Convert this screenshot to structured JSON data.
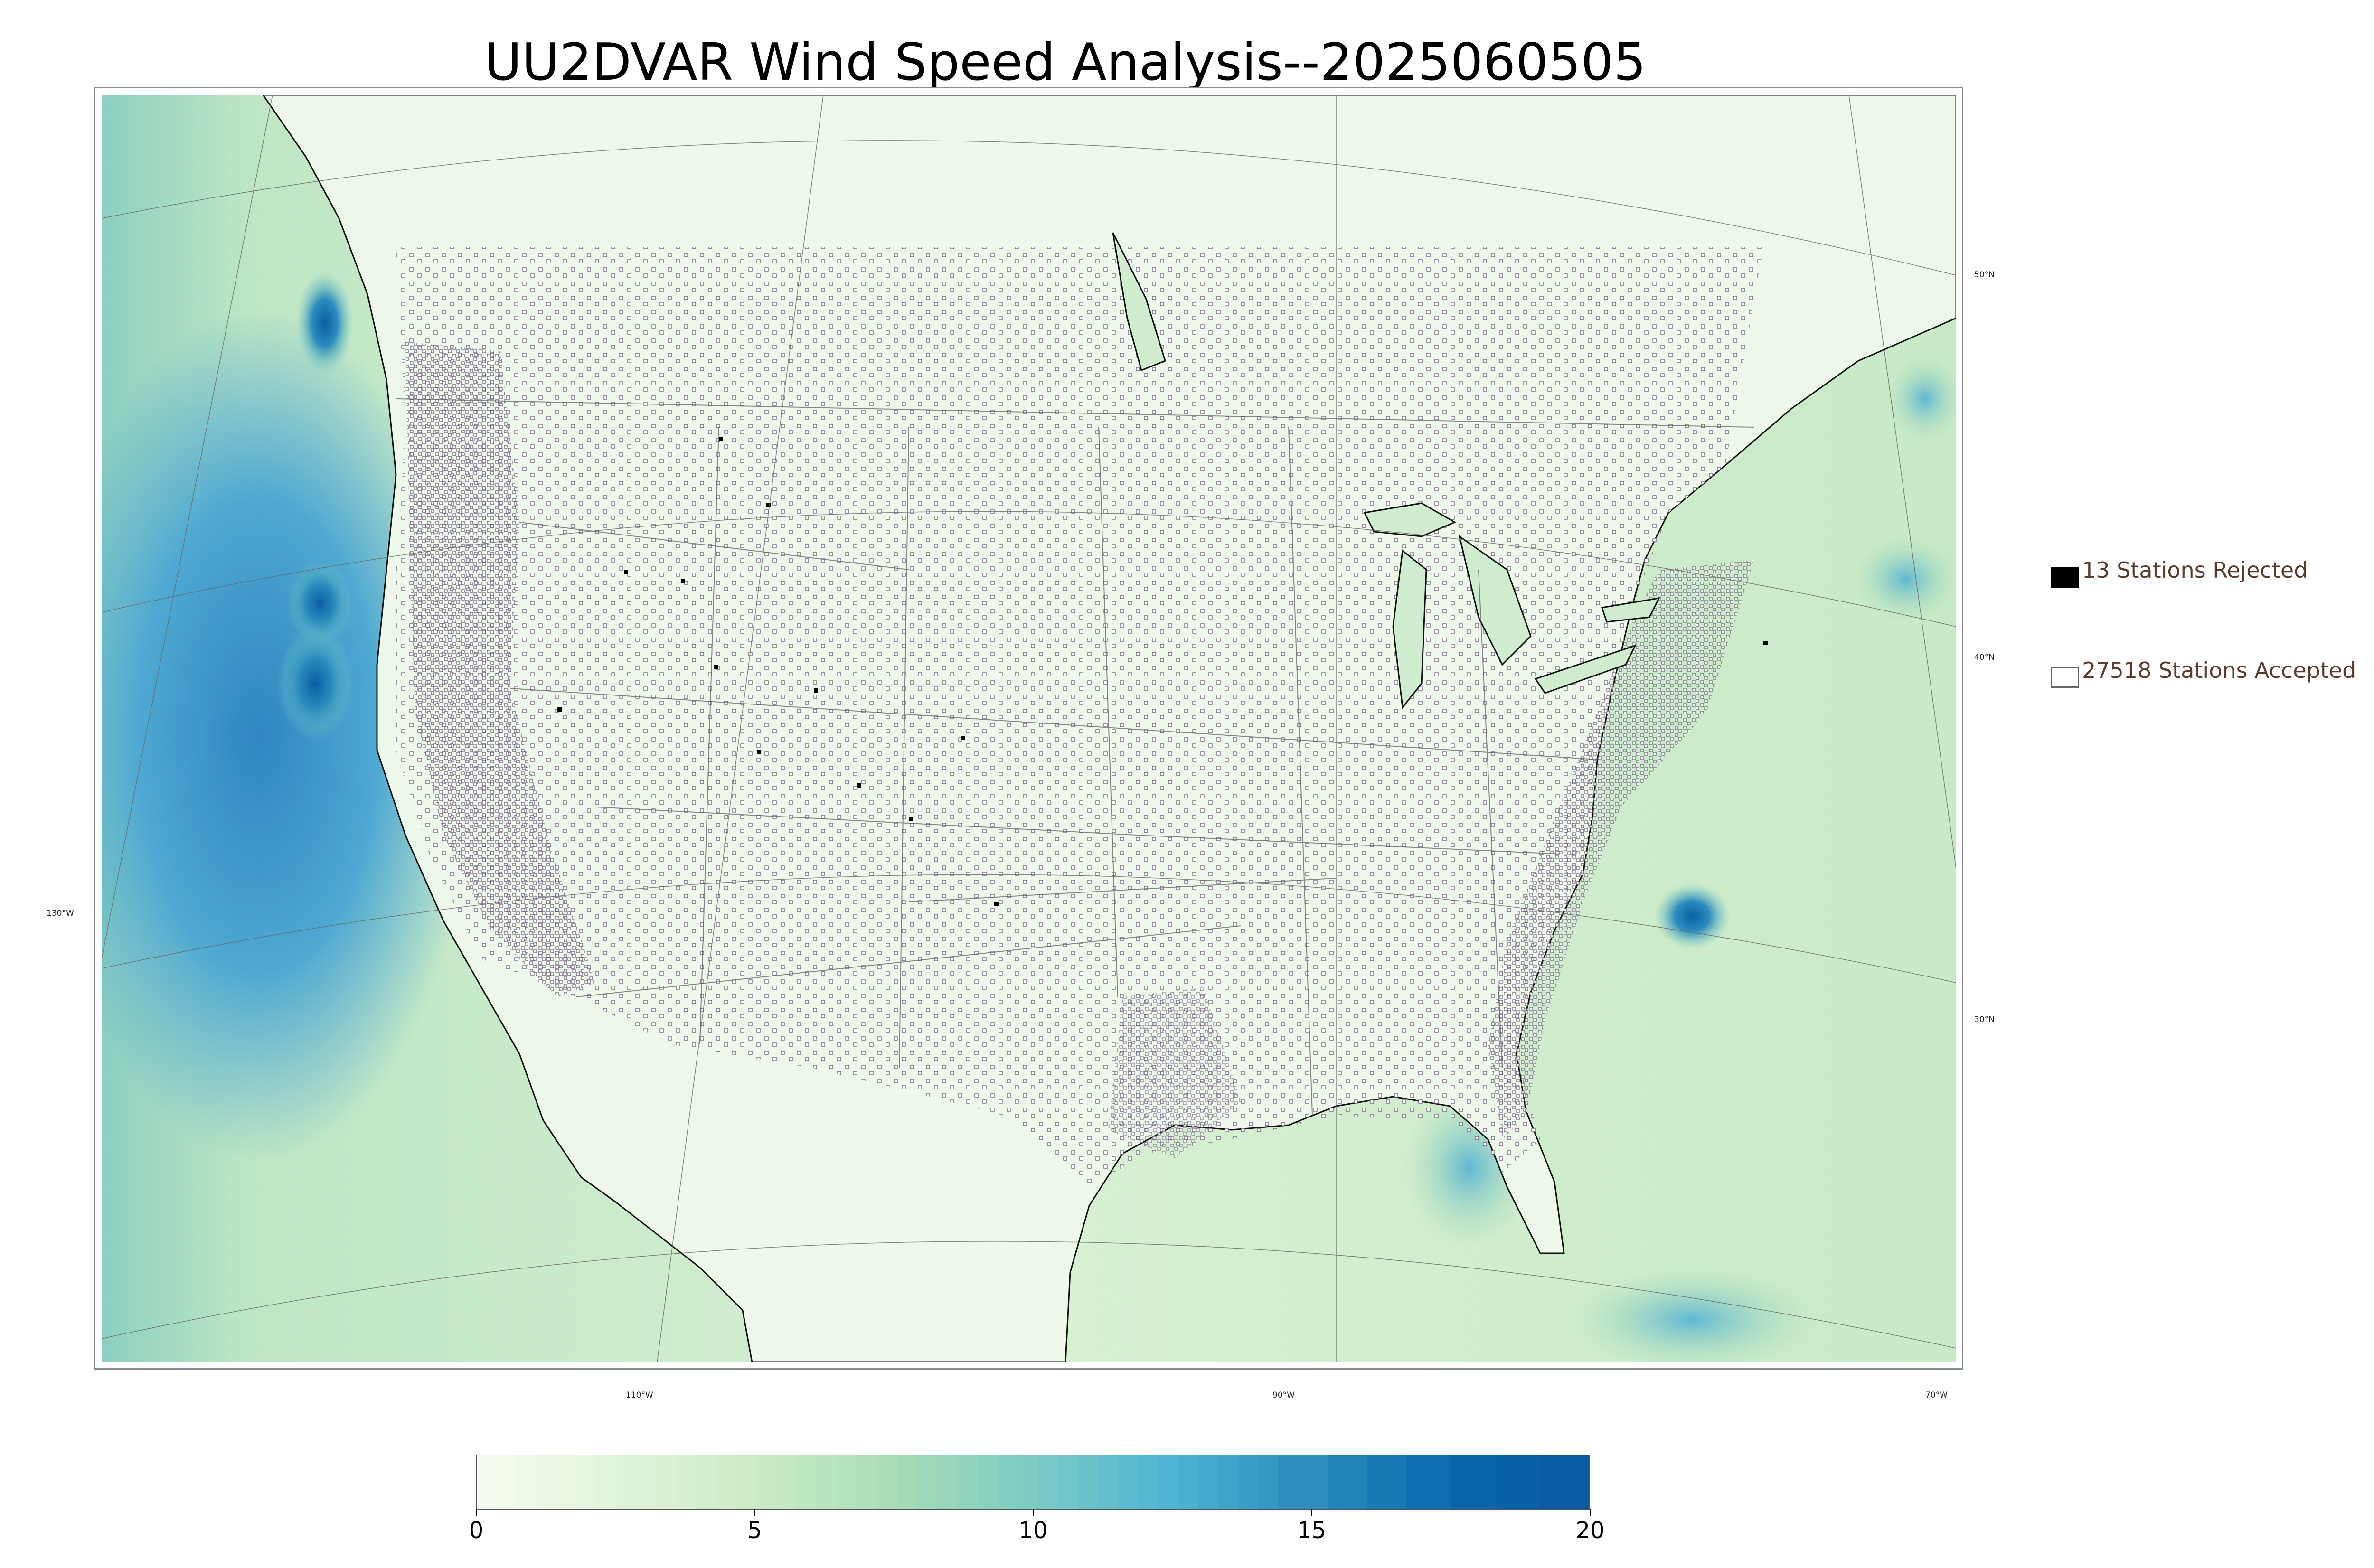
{
  "title": "UU2DVAR Wind Speed Analysis--2025060505",
  "graticule": {
    "lat_labels": [
      "50°N",
      "40°N",
      "30°N"
    ],
    "lon_labels": [
      "130°W",
      "110°W",
      "90°W",
      "70°W"
    ]
  },
  "legend": {
    "rejected": {
      "label": "13 Stations Rejected",
      "count": 13,
      "marker_color": "#000000"
    },
    "accepted": {
      "label": "27518 Stations Accepted",
      "count": 27518,
      "marker_color": "#ffffff"
    }
  },
  "colorbar": {
    "min": 0,
    "max": 20,
    "ticks": [
      "0",
      "5",
      "10",
      "15",
      "20"
    ],
    "colors": [
      "#f7fcf0",
      "#e0f3db",
      "#ccebc5",
      "#a8ddb5",
      "#7bccc4",
      "#4eb3d3",
      "#2b8cbe",
      "#0868ac",
      "#08589e"
    ]
  },
  "map_colors": {
    "land_low_wind": "#f4fbf0",
    "ocean_base": "#cfeccc",
    "pacific_high_wind": "#3a93c7",
    "strong_core": "#0b5fa3",
    "coast_line": "#111111",
    "state_line": "#555555",
    "station_marker": "#6b5a7a"
  }
}
